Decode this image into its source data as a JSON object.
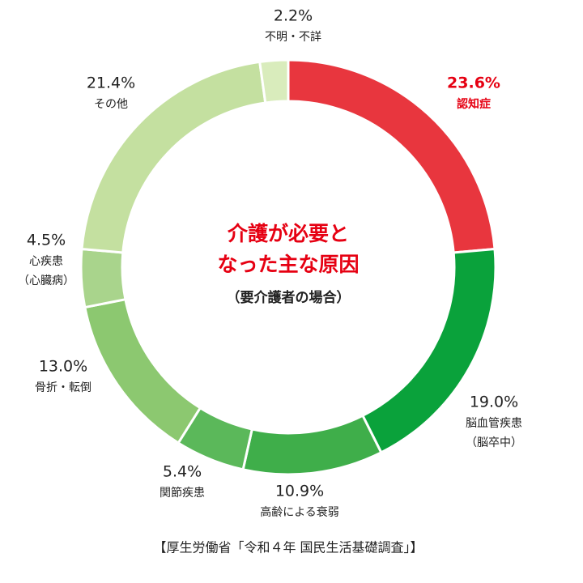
{
  "chart_data": {
    "type": "donut",
    "title": [
      "介護が必要と",
      "なった主な原因"
    ],
    "subtitle": "（要介護者の場合）",
    "source": "【厚生労働省「令和４年 国民生活基礎調査」】",
    "categories": [
      [
        "認知症"
      ],
      [
        "脳血管疾患",
        "（脳卒中）"
      ],
      [
        "高齢による衰弱"
      ],
      [
        "関節疾患"
      ],
      [
        "骨折・転倒"
      ],
      [
        "心疾患",
        "（心臓病）"
      ],
      [
        "その他"
      ],
      [
        "不明・不詳"
      ]
    ],
    "values": [
      23.6,
      19.0,
      10.9,
      5.4,
      13.0,
      4.5,
      21.4,
      2.2
    ],
    "value_labels": [
      "23.6%",
      "19.0%",
      "10.9%",
      "5.4%",
      "13.0%",
      "4.5%",
      "21.4%",
      "2.2%"
    ],
    "colors": [
      "#e8363e",
      "#0aa23b",
      "#3fae4a",
      "#5bb85a",
      "#8cc870",
      "#a9d48c",
      "#c4e0a0",
      "#d9ecbc"
    ],
    "label_colors": [
      "#e60012",
      "#222222",
      "#222222",
      "#222222",
      "#222222",
      "#222222",
      "#222222",
      "#222222"
    ]
  }
}
